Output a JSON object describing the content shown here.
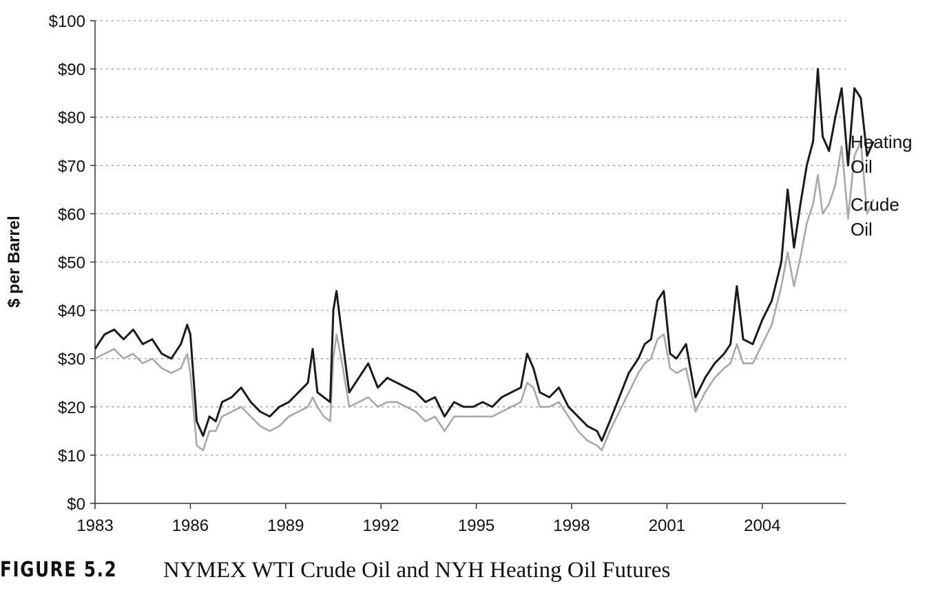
{
  "caption": {
    "figure_label": "FIGURE 5.2",
    "title": "NYMEX WTI Crude Oil and NYH Heating Oil Futures"
  },
  "colors": {
    "heating_oil": "#1a1a1a",
    "crude_oil": "#a8a8a8",
    "grid": "#9a9a9a",
    "axis": "#333333"
  },
  "chart_data": {
    "type": "line",
    "title": "NYMEX WTI Crude Oil and NYH Heating Oil Futures",
    "xlabel": "",
    "ylabel": "$ per Barrel",
    "xlim": [
      1983.0,
      2007.6
    ],
    "ylim": [
      0,
      100
    ],
    "x_ticks": [
      "1983",
      "1986",
      "1989",
      "1992",
      "1995",
      "1998",
      "2001",
      "2004"
    ],
    "y_ticks": [
      "$0",
      "$10",
      "$20",
      "$30",
      "$40",
      "$50",
      "$60",
      "$70",
      "$80",
      "$90",
      "$100"
    ],
    "grid": "horizontal dotted",
    "legend": "inline labels at right end of series",
    "series": [
      {
        "name": "Heating Oil",
        "label_lines": [
          "Heating",
          "Oil"
        ],
        "x": [
          1983.0,
          1983.3,
          1983.6,
          1983.9,
          1984.2,
          1984.5,
          1984.8,
          1985.1,
          1985.4,
          1985.7,
          1985.9,
          1986.0,
          1986.2,
          1986.4,
          1986.6,
          1986.8,
          1987.0,
          1987.3,
          1987.6,
          1987.9,
          1988.2,
          1988.5,
          1988.8,
          1989.1,
          1989.4,
          1989.7,
          1989.85,
          1990.0,
          1990.2,
          1990.4,
          1990.5,
          1990.6,
          1990.75,
          1990.9,
          1991.0,
          1991.3,
          1991.6,
          1991.9,
          1992.2,
          1992.5,
          1992.8,
          1993.1,
          1993.4,
          1993.7,
          1994.0,
          1994.3,
          1994.6,
          1994.9,
          1995.2,
          1995.5,
          1995.8,
          1996.1,
          1996.4,
          1996.6,
          1996.8,
          1997.0,
          1997.3,
          1997.6,
          1997.9,
          1998.2,
          1998.5,
          1998.8,
          1998.95,
          1999.2,
          1999.5,
          1999.8,
          2000.1,
          2000.3,
          2000.5,
          2000.7,
          2000.9,
          2001.1,
          2001.3,
          2001.6,
          2001.9,
          2002.2,
          2002.5,
          2002.8,
          2003.0,
          2003.2,
          2003.4,
          2003.7,
          2004.0,
          2004.3,
          2004.6,
          2004.8,
          2005.0,
          2005.2,
          2005.4,
          2005.6,
          2005.75,
          2005.9,
          2006.1,
          2006.3,
          2006.5,
          2006.7,
          2006.9,
          2007.1,
          2007.3,
          2007.5
        ],
        "y": [
          32,
          35,
          36,
          34,
          36,
          33,
          34,
          31,
          30,
          33,
          37,
          35,
          17,
          14,
          18,
          17,
          21,
          22,
          24,
          21,
          19,
          18,
          20,
          21,
          23,
          25,
          32,
          23,
          22,
          21,
          40,
          44,
          36,
          28,
          23,
          26,
          29,
          24,
          26,
          25,
          24,
          23,
          21,
          22,
          18,
          21,
          20,
          20,
          21,
          20,
          22,
          23,
          24,
          31,
          28,
          23,
          22,
          24,
          20,
          18,
          16,
          15,
          13,
          17,
          22,
          27,
          30,
          33,
          34,
          42,
          44,
          31,
          30,
          33,
          22,
          26,
          29,
          31,
          33,
          45,
          34,
          33,
          38,
          42,
          50,
          65,
          53,
          62,
          70,
          75,
          90,
          76,
          73,
          80,
          86,
          70,
          86,
          84,
          72,
          75
        ]
      },
      {
        "name": "Crude Oil",
        "label_lines": [
          "Crude",
          "Oil"
        ],
        "x": [
          1983.0,
          1983.3,
          1983.6,
          1983.9,
          1984.2,
          1984.5,
          1984.8,
          1985.1,
          1985.4,
          1985.7,
          1985.9,
          1986.0,
          1986.2,
          1986.4,
          1986.6,
          1986.8,
          1987.0,
          1987.3,
          1987.6,
          1987.9,
          1988.2,
          1988.5,
          1988.8,
          1989.1,
          1989.4,
          1989.7,
          1989.85,
          1990.0,
          1990.2,
          1990.4,
          1990.5,
          1990.6,
          1990.75,
          1990.9,
          1991.0,
          1991.3,
          1991.6,
          1991.9,
          1992.2,
          1992.5,
          1992.8,
          1993.1,
          1993.4,
          1993.7,
          1994.0,
          1994.3,
          1994.6,
          1994.9,
          1995.2,
          1995.5,
          1995.8,
          1996.1,
          1996.4,
          1996.6,
          1996.8,
          1997.0,
          1997.3,
          1997.6,
          1997.9,
          1998.2,
          1998.5,
          1998.8,
          1998.95,
          1999.2,
          1999.5,
          1999.8,
          2000.1,
          2000.3,
          2000.5,
          2000.7,
          2000.9,
          2001.1,
          2001.3,
          2001.6,
          2001.9,
          2002.2,
          2002.5,
          2002.8,
          2003.0,
          2003.2,
          2003.4,
          2003.7,
          2004.0,
          2004.3,
          2004.6,
          2004.8,
          2005.0,
          2005.2,
          2005.4,
          2005.6,
          2005.75,
          2005.9,
          2006.1,
          2006.3,
          2006.5,
          2006.7,
          2006.9,
          2007.1,
          2007.3,
          2007.5
        ],
        "y": [
          30,
          31,
          32,
          30,
          31,
          29,
          30,
          28,
          27,
          28,
          31,
          27,
          12,
          11,
          15,
          15,
          18,
          19,
          20,
          18,
          16,
          15,
          16,
          18,
          19,
          20,
          22,
          20,
          18,
          17,
          30,
          35,
          30,
          24,
          20,
          21,
          22,
          20,
          21,
          21,
          20,
          19,
          17,
          18,
          15,
          18,
          18,
          18,
          18,
          18,
          19,
          20,
          21,
          25,
          24,
          20,
          20,
          21,
          18,
          15,
          13,
          12,
          11,
          15,
          19,
          23,
          27,
          29,
          30,
          34,
          35,
          28,
          27,
          28,
          19,
          23,
          26,
          28,
          29,
          33,
          29,
          29,
          33,
          37,
          45,
          52,
          45,
          51,
          58,
          62,
          68,
          60,
          62,
          66,
          74,
          59,
          72,
          75,
          60,
          63
        ]
      }
    ]
  }
}
